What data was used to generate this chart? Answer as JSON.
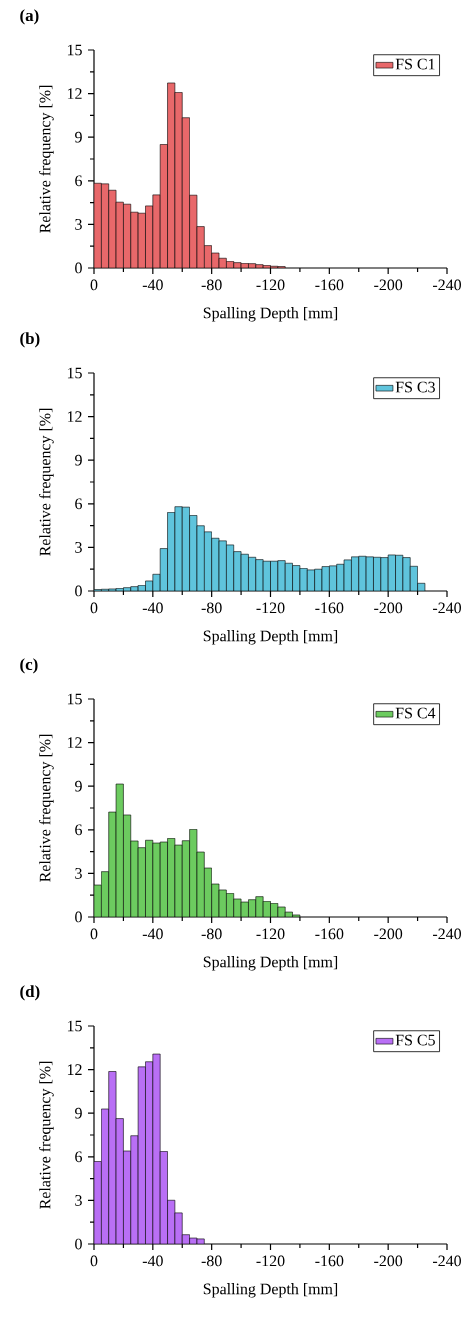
{
  "chart_data": [
    {
      "type": "histogram",
      "title": "(a)",
      "xlabel": "Spalling Depth [mm]",
      "ylabel": "Relative frequency [%]",
      "xlim": [
        0,
        -240
      ],
      "ylim": [
        0,
        15
      ],
      "xticks": [
        0,
        -40,
        -80,
        -120,
        -160,
        -200,
        -240
      ],
      "yticks": [
        0,
        3,
        6,
        9,
        12,
        15
      ],
      "legend": "top right",
      "bins": [
        0,
        -5,
        -10,
        -15,
        -20,
        -25,
        -30,
        -35,
        -40,
        -45,
        -50,
        -55,
        -60,
        -65,
        -70,
        -75,
        -80,
        -85,
        -90,
        -95,
        -100,
        -105,
        -110,
        -115,
        -120,
        -125,
        -130
      ],
      "series": [
        {
          "name": "FS C1",
          "color": "#e8686a",
          "values": [
            5.83,
            5.79,
            5.35,
            4.53,
            4.39,
            3.84,
            3.77,
            4.27,
            5.03,
            8.5,
            12.73,
            12.08,
            10.34,
            5.01,
            2.85,
            1.54,
            1.03,
            0.67,
            0.46,
            0.37,
            0.32,
            0.3,
            0.23,
            0.18,
            0.12,
            0.1
          ]
        }
      ]
    },
    {
      "type": "histogram",
      "title": "(b)",
      "xlabel": "Spalling Depth [mm]",
      "ylabel": "Relative frequency [%]",
      "xlim": [
        0,
        -240
      ],
      "ylim": [
        0,
        15
      ],
      "xticks": [
        0,
        -40,
        -80,
        -120,
        -160,
        -200,
        -240
      ],
      "yticks": [
        0,
        3,
        6,
        9,
        12,
        15
      ],
      "legend": "top right",
      "bins": [
        0,
        -5,
        -10,
        -15,
        -20,
        -25,
        -30,
        -35,
        -40,
        -45,
        -50,
        -55,
        -60,
        -65,
        -70,
        -75,
        -80,
        -85,
        -90,
        -95,
        -100,
        -105,
        -110,
        -115,
        -120,
        -125,
        -130,
        -135,
        -140,
        -145,
        -150,
        -155,
        -160,
        -165,
        -170,
        -175,
        -180,
        -185,
        -190,
        -195,
        -200,
        -205,
        -210,
        -215,
        -220,
        -225
      ],
      "series": [
        {
          "name": "FS C3",
          "color": "#5fc4dc",
          "values": [
            0.1,
            0.12,
            0.14,
            0.18,
            0.23,
            0.3,
            0.39,
            0.69,
            1.15,
            2.92,
            5.41,
            5.8,
            5.77,
            5.2,
            4.49,
            4.07,
            3.63,
            3.45,
            3.17,
            2.71,
            2.53,
            2.32,
            2.16,
            2.05,
            2.05,
            2.09,
            1.91,
            1.75,
            1.56,
            1.45,
            1.5,
            1.68,
            1.73,
            1.84,
            2.14,
            2.35,
            2.39,
            2.35,
            2.32,
            2.3,
            2.48,
            2.46,
            2.3,
            1.7,
            0.53
          ]
        }
      ]
    },
    {
      "type": "histogram",
      "title": "(c)",
      "xlabel": "Spalling Depth [mm]",
      "ylabel": "Relative frequency [%]",
      "xlim": [
        0,
        -240
      ],
      "ylim": [
        0,
        15
      ],
      "xticks": [
        0,
        -40,
        -80,
        -120,
        -160,
        -200,
        -240
      ],
      "yticks": [
        0,
        3,
        6,
        9,
        12,
        15
      ],
      "legend": "top right",
      "bins": [
        0,
        -5,
        -10,
        -15,
        -20,
        -25,
        -30,
        -35,
        -40,
        -45,
        -50,
        -55,
        -60,
        -65,
        -70,
        -75,
        -80,
        -85,
        -90,
        -95,
        -100,
        -105,
        -110,
        -115,
        -120,
        -125,
        -130,
        -135,
        -140
      ],
      "series": [
        {
          "name": "FS C4",
          "color": "#6ccb5f",
          "values": [
            2.2,
            3.12,
            7.22,
            9.15,
            7.02,
            5.23,
            4.77,
            5.28,
            5.09,
            5.16,
            5.41,
            4.95,
            5.25,
            6.03,
            4.47,
            3.37,
            2.27,
            1.86,
            1.63,
            1.24,
            1.03,
            1.19,
            1.4,
            1.08,
            0.94,
            0.69,
            0.34,
            0.14
          ]
        }
      ]
    },
    {
      "type": "histogram",
      "title": "(d)",
      "xlabel": "Spalling Depth [mm]",
      "ylabel": "Relative frequency [%]",
      "xlim": [
        0,
        -240
      ],
      "ylim": [
        0,
        15
      ],
      "xticks": [
        0,
        -40,
        -80,
        -120,
        -160,
        -200,
        -240
      ],
      "yticks": [
        0,
        3,
        6,
        9,
        12,
        15
      ],
      "legend": "top right",
      "bins": [
        0,
        -5,
        -10,
        -15,
        -20,
        -25,
        -30,
        -35,
        -40,
        -45,
        -50,
        -55,
        -60,
        -65,
        -70,
        -75
      ],
      "series": [
        {
          "name": "FS C5",
          "color": "#b96ff5",
          "values": [
            5.68,
            9.29,
            11.87,
            8.63,
            6.4,
            7.45,
            12.19,
            12.54,
            13.07,
            6.37,
            3.01,
            2.14,
            0.64,
            0.41,
            0.35
          ]
        }
      ]
    }
  ]
}
